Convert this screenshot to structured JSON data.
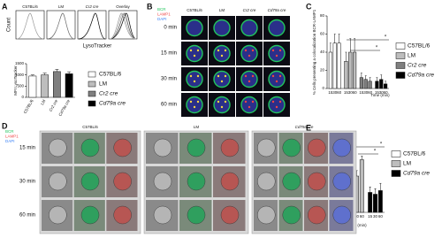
{
  "panels": [
    "A",
    "B",
    "C",
    "D",
    "E"
  ],
  "histograms": {
    "titles": [
      "C57BL/6",
      "LM",
      "Cr2 cre",
      "Overlay"
    ],
    "ylabel": "Count",
    "xlabel": "LysoTracker"
  },
  "panel_b": {
    "legend": [
      "BCR",
      "LAMP1",
      "DAPI"
    ],
    "columns": [
      "C57BL/6",
      "LM",
      "Cr2 cre",
      "Cd79a cre"
    ],
    "rows": [
      "0 min",
      "15 min",
      "30 min",
      "60 min"
    ]
  },
  "panel_d": {
    "legend": [
      "BCR",
      "LAMP1",
      "DAPI"
    ],
    "groups": [
      "C57BL/6",
      "LM",
      "Cd79a cre"
    ],
    "rows": [
      "15 min",
      "30 min",
      "60 min"
    ]
  },
  "chart_data": [
    {
      "type": "bar",
      "ylabel": "MFI LysoTracker",
      "categories": [
        "C57BL/6",
        "LM",
        "Cr2 cre",
        "Cd79a cre"
      ],
      "values": [
        950,
        1000,
        1150,
        1050
      ],
      "errors": [
        50,
        80,
        100,
        90
      ],
      "colors": [
        "#ffffff",
        "#bdbdbd",
        "#7f7f7f",
        "#000000"
      ],
      "ylim": [
        0,
        1500
      ],
      "yticks": [
        0,
        500,
        1000,
        1500
      ]
    },
    {
      "type": "grouped_bar",
      "ylabel": "% Cells presenting a colocalization BCR-LAMP1",
      "xlabel": "Time (min)",
      "categories": [
        "15",
        "30",
        "60"
      ],
      "series": [
        {
          "name": "C57BL/6",
          "color": "#ffffff",
          "values": [
            40,
            50,
            50
          ],
          "errors": [
            10,
            10,
            10
          ]
        },
        {
          "name": "LM",
          "color": "#bdbdbd",
          "values": [
            30,
            40,
            40
          ],
          "errors": [
            10,
            15,
            15
          ]
        },
        {
          "name": "Cr2 cre",
          "color": "#7f7f7f",
          "values": [
            12,
            10,
            8
          ],
          "errors": [
            5,
            4,
            4
          ]
        },
        {
          "name": "Cd79a cre",
          "color": "#000000",
          "values": [
            8,
            10,
            5
          ],
          "errors": [
            4,
            5,
            3
          ]
        }
      ],
      "annotations": [
        "*",
        "*"
      ],
      "ylim": [
        0,
        80
      ],
      "yticks": [
        0,
        20,
        40,
        60,
        80
      ]
    },
    {
      "type": "grouped_bar",
      "ylabel": "% Cells presenting a colocalization BCR-LAMP1",
      "xlabel": "Time (min)",
      "categories": [
        "15",
        "30",
        "60"
      ],
      "series": [
        {
          "name": "C57BL/6",
          "color": "#ffffff",
          "values": [
            10,
            14,
            30
          ],
          "errors": [
            4,
            5,
            2
          ]
        },
        {
          "name": "LM",
          "color": "#bdbdbd",
          "values": [
            12,
            20,
            29
          ],
          "errors": [
            3,
            3,
            2
          ]
        },
        {
          "name": "Cd79a cre",
          "color": "#000000",
          "values": [
            11,
            10,
            12
          ],
          "errors": [
            3,
            3,
            4
          ]
        }
      ],
      "annotations": [
        "*",
        "*"
      ],
      "ylim": [
        0,
        40
      ],
      "yticks": [
        0,
        10,
        20,
        30,
        40
      ]
    }
  ]
}
